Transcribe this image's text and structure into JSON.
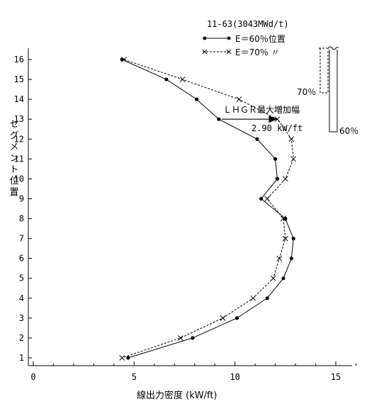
{
  "chart_data": {
    "type": "line",
    "title": "11-63(3043MWd/t)",
    "xlabel": "線出力密度 (kW/ft)",
    "ylabel": "セグメント位置",
    "xlim": [
      0,
      16
    ],
    "ylim": [
      0.5,
      16.5
    ],
    "x_ticks": [
      "0",
      "5",
      "10",
      "15"
    ],
    "y_ticks": [
      "1",
      "2",
      "3",
      "4",
      "5",
      "6",
      "7",
      "8",
      "9",
      "10",
      "11",
      "12",
      "13",
      "14",
      "15",
      "16"
    ],
    "grid": false,
    "legend_position": "top-right",
    "series": [
      {
        "name": "E＝60％位置",
        "style": "solid",
        "marker": "dot",
        "color": "#000000",
        "points": [
          {
            "x": 4.4,
            "y": 16
          },
          {
            "x": 6.6,
            "y": 15
          },
          {
            "x": 8.1,
            "y": 14
          },
          {
            "x": 9.2,
            "y": 13
          },
          {
            "x": 11.1,
            "y": 12
          },
          {
            "x": 12.0,
            "y": 11
          },
          {
            "x": 12.1,
            "y": 10
          },
          {
            "x": 11.3,
            "y": 9
          },
          {
            "x": 12.5,
            "y": 8
          },
          {
            "x": 12.9,
            "y": 7
          },
          {
            "x": 12.8,
            "y": 6
          },
          {
            "x": 12.4,
            "y": 5
          },
          {
            "x": 11.6,
            "y": 4
          },
          {
            "x": 10.1,
            "y": 3
          },
          {
            "x": 7.9,
            "y": 2
          },
          {
            "x": 4.7,
            "y": 1
          }
        ]
      },
      {
        "name": "E＝70％ 〃",
        "style": "dashed",
        "marker": "x",
        "color": "#000000",
        "points": [
          {
            "x": 4.5,
            "y": 16
          },
          {
            "x": 7.4,
            "y": 15
          },
          {
            "x": 10.2,
            "y": 14
          },
          {
            "x": 12.1,
            "y": 13
          },
          {
            "x": 12.8,
            "y": 12
          },
          {
            "x": 12.9,
            "y": 11
          },
          {
            "x": 12.5,
            "y": 10
          },
          {
            "x": 11.6,
            "y": 9
          },
          {
            "x": 12.4,
            "y": 8
          },
          {
            "x": 12.5,
            "y": 7
          },
          {
            "x": 12.2,
            "y": 6
          },
          {
            "x": 11.9,
            "y": 5
          },
          {
            "x": 10.9,
            "y": 4
          },
          {
            "x": 9.4,
            "y": 3
          },
          {
            "x": 7.3,
            "y": 2
          },
          {
            "x": 4.4,
            "y": 1
          }
        ]
      }
    ],
    "annotations": {
      "lhgr_label": "ＬＨＧＲ最大増加幅",
      "lhgr_value": "2.90 kW/ft",
      "arrow_from": {
        "x": 9.2,
        "y": 13
      },
      "arrow_to": {
        "x": 12.1,
        "y": 13
      },
      "rod_label_70": "70％",
      "rod_label_60": "60％"
    }
  }
}
